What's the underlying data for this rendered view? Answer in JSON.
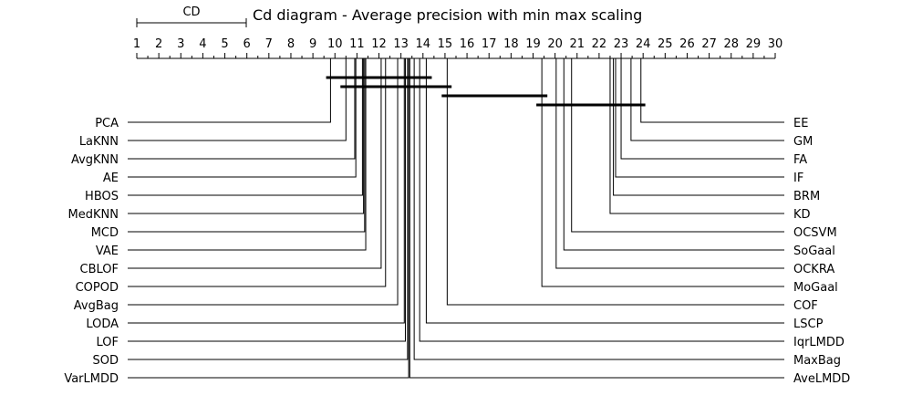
{
  "chart_data": {
    "type": "critical-difference-diagram",
    "title": "Cd diagram - Average precision with min max scaling",
    "cd_label": "CD",
    "cd_interval": [
      1,
      6
    ],
    "axis": {
      "min": 1,
      "max": 30,
      "ticks": [
        1,
        2,
        3,
        4,
        5,
        6,
        7,
        8,
        9,
        10,
        11,
        12,
        13,
        14,
        15,
        16,
        17,
        18,
        19,
        20,
        21,
        22,
        23,
        24,
        25,
        26,
        27,
        28,
        29,
        30
      ],
      "tick_labels": [
        "1",
        "2",
        "3",
        "4",
        "5",
        "6",
        "7",
        "8",
        "9",
        "10",
        "11",
        "12",
        "13",
        "14",
        "15",
        "16",
        "17",
        "18",
        "19",
        "20",
        "21",
        "22",
        "23",
        "24",
        "25",
        "26",
        "27",
        "28",
        "29",
        "30"
      ],
      "minor_ticks": true
    },
    "left_methods": [
      {
        "name": "PCA",
        "rank": 9.8
      },
      {
        "name": "LaKNN",
        "rank": 10.5
      },
      {
        "name": "AvgKNN",
        "rank": 10.9
      },
      {
        "name": "AE",
        "rank": 10.95
      },
      {
        "name": "HBOS",
        "rank": 11.25
      },
      {
        "name": "MedKNN",
        "rank": 11.3
      },
      {
        "name": "MCD",
        "rank": 11.35
      },
      {
        "name": "VAE",
        "rank": 11.4
      },
      {
        "name": "CBLOF",
        "rank": 12.1
      },
      {
        "name": "COPOD",
        "rank": 12.3
      },
      {
        "name": "AvgBag",
        "rank": 12.85
      },
      {
        "name": "LODA",
        "rank": 13.15
      },
      {
        "name": "LOF",
        "rank": 13.2
      },
      {
        "name": "SOD",
        "rank": 13.3
      },
      {
        "name": "VarLMDD",
        "rank": 13.35
      }
    ],
    "right_methods": [
      {
        "name": "EE",
        "rank": 23.9
      },
      {
        "name": "GM",
        "rank": 23.45
      },
      {
        "name": "FA",
        "rank": 23.0
      },
      {
        "name": "IF",
        "rank": 22.75
      },
      {
        "name": "BRM",
        "rank": 22.65
      },
      {
        "name": "KD",
        "rank": 22.5
      },
      {
        "name": "OCSVM",
        "rank": 20.75
      },
      {
        "name": "SoGaal",
        "rank": 20.4
      },
      {
        "name": "OCKRA",
        "rank": 20.05
      },
      {
        "name": "MoGaal",
        "rank": 19.4
      },
      {
        "name": "COF",
        "rank": 15.1
      },
      {
        "name": "LSCP",
        "rank": 14.15
      },
      {
        "name": "IqrLMDD",
        "rank": 13.85
      },
      {
        "name": "MaxBag",
        "rank": 13.6
      },
      {
        "name": "AveLMDD",
        "rank": 13.4
      }
    ],
    "clique_bars": [
      {
        "from": 9.6,
        "to": 14.4
      },
      {
        "from": 10.25,
        "to": 15.3
      },
      {
        "from": 14.85,
        "to": 19.65
      },
      {
        "from": 19.15,
        "to": 24.1
      }
    ],
    "colors": {
      "line": "#000000",
      "text": "#000000",
      "background": "#ffffff"
    }
  }
}
